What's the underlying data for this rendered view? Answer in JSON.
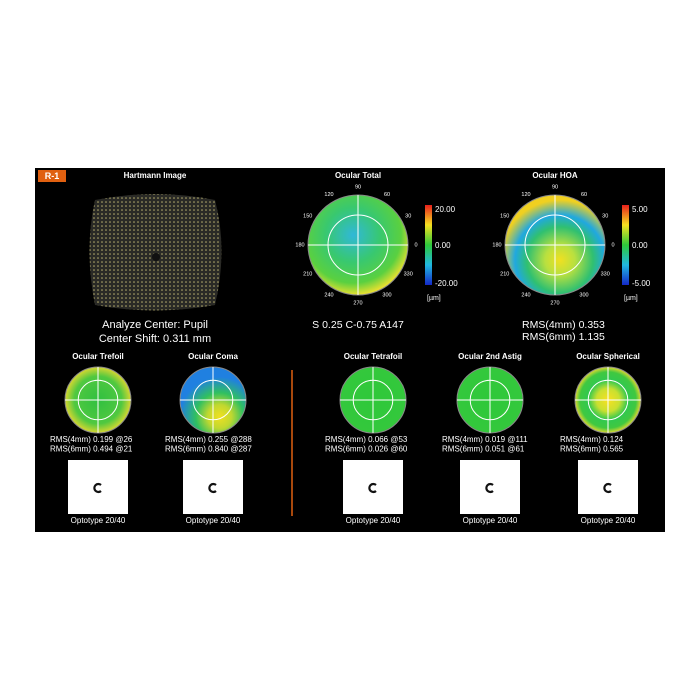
{
  "badge": "R-1",
  "hartmann": {
    "title": "Hartmann Image",
    "lines": [
      "Analyze Center: Pupil",
      "Center Shift: 0.311 mm"
    ]
  },
  "angle_labels": [
    "90",
    "60",
    "30",
    "0",
    "330",
    "300",
    "270",
    "240",
    "210",
    "180",
    "150",
    "120"
  ],
  "maps": [
    {
      "title": "Ocular Total",
      "scale": [
        "20.00",
        "0.00",
        "-20.00"
      ],
      "unit": "[µm]",
      "lines": [
        "S 0.25 C-0.75 A147"
      ]
    },
    {
      "title": "Ocular HOA",
      "scale": [
        "5.00",
        "0.00",
        "-5.00"
      ],
      "unit": "[µm]",
      "lines": [
        "RMS(4mm)  0.353",
        "RMS(6mm)  1.135"
      ]
    }
  ],
  "terms": [
    {
      "title": "Ocular Trefoil",
      "rms": [
        "RMS(4mm)  0.199 @26",
        "RMS(6mm)  0.494 @21"
      ],
      "optotype": "Optotype 20/40"
    },
    {
      "title": "Ocular Coma",
      "rms": [
        "RMS(4mm)  0.255 @288",
        "RMS(6mm)  0.840 @287"
      ],
      "optotype": "Optotype 20/40"
    },
    {
      "title": "Ocular Tetrafoil",
      "rms": [
        "RMS(4mm)  0.066 @53",
        "RMS(6mm)  0.026 @60"
      ],
      "optotype": "Optotype 20/40"
    },
    {
      "title": "Ocular 2nd Astig",
      "rms": [
        "RMS(4mm)  0.019 @111",
        "RMS(6mm)  0.051 @61"
      ],
      "optotype": "Optotype 20/40"
    },
    {
      "title": "Ocular Spherical",
      "rms": [
        "RMS(4mm)  0.124",
        "RMS(6mm)  0.565"
      ],
      "optotype": "Optotype 20/40"
    }
  ]
}
